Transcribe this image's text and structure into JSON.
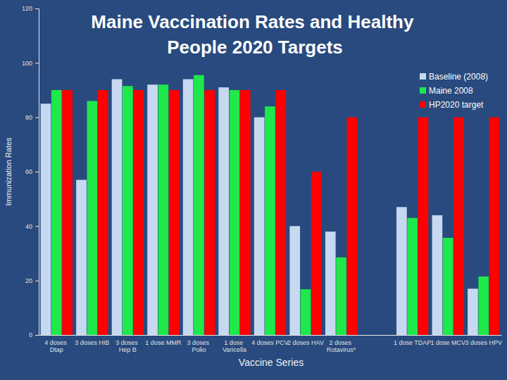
{
  "chart_data": {
    "type": "bar",
    "title": "Maine Vaccination Rates and Healthy People 2020 Targets",
    "x_label": "Vaccine Series",
    "y_label": "Immunization Rates",
    "categories": [
      "4 doses Dtap",
      "3 doses HIB",
      "3 doses Hep B",
      "1 dose MMR",
      "3 doses Polio",
      "1 dose Varicella",
      "4 doses PCV",
      "2 doses HAV",
      "2 doses Rotavirus*",
      null,
      "1 dose TDAP",
      "1 dose MCV",
      "3 doses HPV"
    ],
    "series": [
      {
        "name": "Baseline (2008)",
        "color": "#c6d9f1",
        "values": [
          85,
          57,
          94,
          92,
          94,
          91,
          80,
          40,
          38,
          null,
          47,
          44,
          17
        ]
      },
      {
        "name": "Maine 2008",
        "color": "#1ee84a",
        "values": [
          90,
          86,
          91.5,
          92,
          95.5,
          90,
          84,
          16.8,
          28.5,
          null,
          43,
          35.7,
          21.5
        ]
      },
      {
        "name": "HP2020 target",
        "color": "#ff0000",
        "values": [
          90,
          90,
          90,
          90,
          90,
          90,
          90,
          60,
          80,
          null,
          80,
          80,
          80
        ]
      }
    ],
    "ylim": [
      0,
      120
    ],
    "yticks": [
      0,
      20,
      40,
      60,
      80,
      100,
      120
    ],
    "grid": false,
    "legend": "right"
  }
}
